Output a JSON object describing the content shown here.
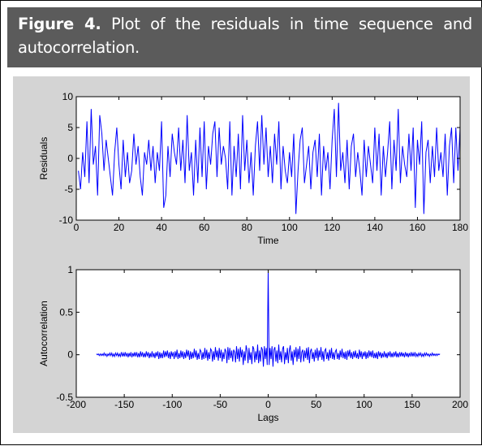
{
  "figure": {
    "label": "Figure 4.",
    "text": "Plot of the residuals in time sequence and autocorrelation."
  },
  "chart_data": [
    {
      "type": "line",
      "xlabel": "Time",
      "ylabel": "Residuals",
      "color": "#0000ff",
      "xlim": [
        0,
        180
      ],
      "xticks": [
        0,
        20,
        40,
        60,
        80,
        100,
        120,
        140,
        160,
        180
      ],
      "ylim": [
        -10,
        10
      ],
      "yticks": [
        -10,
        -5,
        0,
        5,
        10
      ],
      "x": [
        1,
        2,
        3,
        4,
        5,
        6,
        7,
        8,
        9,
        10,
        11,
        12,
        13,
        14,
        15,
        16,
        17,
        18,
        19,
        20,
        21,
        22,
        23,
        24,
        25,
        26,
        27,
        28,
        29,
        30,
        31,
        32,
        33,
        34,
        35,
        36,
        37,
        38,
        39,
        40,
        41,
        42,
        43,
        44,
        45,
        46,
        47,
        48,
        49,
        50,
        51,
        52,
        53,
        54,
        55,
        56,
        57,
        58,
        59,
        60,
        61,
        62,
        63,
        64,
        65,
        66,
        67,
        68,
        69,
        70,
        71,
        72,
        73,
        74,
        75,
        76,
        77,
        78,
        79,
        80,
        81,
        82,
        83,
        84,
        85,
        86,
        87,
        88,
        89,
        90,
        91,
        92,
        93,
        94,
        95,
        96,
        97,
        98,
        99,
        100,
        101,
        102,
        103,
        104,
        105,
        106,
        107,
        108,
        109,
        110,
        111,
        112,
        113,
        114,
        115,
        116,
        117,
        118,
        119,
        120,
        121,
        122,
        123,
        124,
        125,
        126,
        127,
        128,
        129,
        130,
        131,
        132,
        133,
        134,
        135,
        136,
        137,
        138,
        139,
        140,
        141,
        142,
        143,
        144,
        145,
        146,
        147,
        148,
        149,
        150,
        151,
        152,
        153,
        154,
        155,
        156,
        157,
        158,
        159,
        160,
        161,
        162,
        163,
        164,
        165,
        166,
        167,
        168,
        169,
        170,
        171,
        172,
        173,
        174,
        175,
        176,
        177,
        178,
        179,
        180
      ],
      "values": [
        -2,
        -5,
        1,
        -3,
        6,
        -4,
        8,
        -1,
        2,
        -6,
        7,
        4,
        -2,
        3,
        0,
        -3,
        -6,
        1,
        5,
        -1,
        -5,
        3,
        -3,
        1,
        -4,
        -2,
        4,
        -1,
        2,
        -3,
        -6,
        1,
        -1,
        3,
        -2,
        2,
        -4,
        1,
        -2,
        6,
        -8,
        -6,
        2,
        -3,
        4,
        1,
        -1,
        5,
        -2,
        3,
        -4,
        7,
        -2,
        1,
        -6,
        3,
        -4,
        5,
        -3,
        6,
        -5,
        2,
        -1,
        4,
        6,
        -3,
        5,
        -1,
        2,
        0,
        -5,
        6,
        -6,
        2,
        -3,
        4,
        -5,
        7,
        -2,
        3,
        -4,
        1,
        -6,
        2,
        6,
        -2,
        7,
        -1,
        5,
        -3,
        2,
        -4,
        4,
        -1,
        6,
        -5,
        2,
        -2,
        -4,
        1,
        -3,
        4,
        -9,
        -2,
        3,
        5,
        -4,
        -1,
        2,
        -5,
        1,
        3,
        -3,
        4,
        -6,
        2,
        -2,
        1,
        -5,
        3,
        8,
        -3,
        9,
        -2,
        1,
        -4,
        3,
        -5,
        2,
        4,
        -3,
        1,
        -2,
        -6,
        3,
        -3,
        2,
        -1,
        -4,
        5,
        -2,
        4,
        -6,
        2,
        -3,
        1,
        6,
        -5,
        3,
        -2,
        8,
        -4,
        2,
        -1,
        -3,
        4,
        -2,
        5,
        -8,
        3,
        -1,
        6,
        -9,
        1,
        3,
        -4,
        2,
        -3,
        5,
        -2,
        1,
        -3,
        4,
        -6,
        2,
        5,
        -4,
        5,
        -2,
        5
      ]
    },
    {
      "type": "line",
      "xlabel": "Lags",
      "ylabel": "Autocorrelation",
      "color": "#0000ff",
      "xlim": [
        -200,
        200
      ],
      "xticks": [
        -200,
        -150,
        -100,
        -50,
        0,
        50,
        100,
        150,
        200
      ],
      "ylim": [
        -0.5,
        1
      ],
      "yticks": [
        -0.5,
        0,
        0.5,
        1
      ],
      "x": [
        -179,
        -178,
        -177,
        -176,
        -175,
        -174,
        -173,
        -172,
        -171,
        -170,
        -169,
        -168,
        -167,
        -166,
        -165,
        -164,
        -163,
        -162,
        -161,
        -160,
        -159,
        -158,
        -157,
        -156,
        -155,
        -154,
        -153,
        -152,
        -151,
        -150,
        -149,
        -148,
        -147,
        -146,
        -145,
        -144,
        -143,
        -142,
        -141,
        -140,
        -139,
        -138,
        -137,
        -136,
        -135,
        -134,
        -133,
        -132,
        -131,
        -130,
        -129,
        -128,
        -127,
        -126,
        -125,
        -124,
        -123,
        -122,
        -121,
        -120,
        -119,
        -118,
        -117,
        -116,
        -115,
        -114,
        -113,
        -112,
        -111,
        -110,
        -109,
        -108,
        -107,
        -106,
        -105,
        -104,
        -103,
        -102,
        -101,
        -100,
        -99,
        -98,
        -97,
        -96,
        -95,
        -94,
        -93,
        -92,
        -91,
        -90,
        -89,
        -88,
        -87,
        -86,
        -85,
        -84,
        -83,
        -82,
        -81,
        -80,
        -79,
        -78,
        -77,
        -76,
        -75,
        -74,
        -73,
        -72,
        -71,
        -70,
        -69,
        -68,
        -67,
        -66,
        -65,
        -64,
        -63,
        -62,
        -61,
        -60,
        -59,
        -58,
        -57,
        -56,
        -55,
        -54,
        -53,
        -52,
        -51,
        -50,
        -49,
        -48,
        -47,
        -46,
        -45,
        -44,
        -43,
        -42,
        -41,
        -40,
        -39,
        -38,
        -37,
        -36,
        -35,
        -34,
        -33,
        -32,
        -31,
        -30,
        -29,
        -28,
        -27,
        -26,
        -25,
        -24,
        -23,
        -22,
        -21,
        -20,
        -19,
        -18,
        -17,
        -16,
        -15,
        -14,
        -13,
        -12,
        -11,
        -10,
        -9,
        -8,
        -7,
        -6,
        -5,
        -4,
        -3,
        -2,
        -1,
        0,
        1,
        2,
        3,
        4,
        5,
        6,
        7,
        8,
        9,
        10,
        11,
        12,
        13,
        14,
        15,
        16,
        17,
        18,
        19,
        20,
        21,
        22,
        23,
        24,
        25,
        26,
        27,
        28,
        29,
        30,
        31,
        32,
        33,
        34,
        35,
        36,
        37,
        38,
        39,
        40,
        41,
        42,
        43,
        44,
        45,
        46,
        47,
        48,
        49,
        50,
        51,
        52,
        53,
        54,
        55,
        56,
        57,
        58,
        59,
        60,
        61,
        62,
        63,
        64,
        65,
        66,
        67,
        68,
        69,
        70,
        71,
        72,
        73,
        74,
        75,
        76,
        77,
        78,
        79,
        80,
        81,
        82,
        83,
        84,
        85,
        86,
        87,
        88,
        89,
        90,
        91,
        92,
        93,
        94,
        95,
        96,
        97,
        98,
        99,
        100,
        101,
        102,
        103,
        104,
        105,
        106,
        107,
        108,
        109,
        110,
        111,
        112,
        113,
        114,
        115,
        116,
        117,
        118,
        119,
        120,
        121,
        122,
        123,
        124,
        125,
        126,
        127,
        128,
        129,
        130,
        131,
        132,
        133,
        134,
        135,
        136,
        137,
        138,
        139,
        140,
        141,
        142,
        143,
        144,
        145,
        146,
        147,
        148,
        149,
        150,
        151,
        152,
        153,
        154,
        155,
        156,
        157,
        158,
        159,
        160,
        161,
        162,
        163,
        164,
        165,
        166,
        167,
        168,
        169,
        170,
        171,
        172,
        173,
        174,
        175,
        176,
        177,
        178,
        179
      ],
      "values": [
        0.01,
        0,
        0.01,
        -0.01,
        0.01,
        -0.01,
        0.01,
        -0.01,
        0.02,
        -0.01,
        0.01,
        -0.02,
        0.01,
        -0.01,
        0.02,
        -0.01,
        0.02,
        -0.02,
        0.01,
        -0.02,
        0.02,
        -0.01,
        0.02,
        -0.02,
        0.01,
        -0.02,
        0.03,
        -0.02,
        0.02,
        -0.02,
        0.03,
        -0.02,
        0.02,
        -0.03,
        0.02,
        -0.02,
        0.03,
        -0.03,
        0.02,
        -0.02,
        0.03,
        -0.02,
        0.03,
        -0.03,
        0.02,
        -0.03,
        0.04,
        -0.02,
        0.03,
        -0.03,
        0.02,
        -0.03,
        0.04,
        -0.02,
        0.03,
        -0.04,
        0.02,
        -0.03,
        0.04,
        -0.03,
        0.02,
        -0.04,
        0.03,
        -0.02,
        0.04,
        -0.05,
        0.03,
        -0.04,
        0.02,
        -0.04,
        0.05,
        -0.03,
        0.04,
        -0.02,
        0.05,
        -0.04,
        0.03,
        -0.05,
        0.04,
        -0.02,
        0.03,
        -0.05,
        0.04,
        -0.03,
        0.06,
        -0.05,
        0.02,
        -0.04,
        0.05,
        -0.03,
        0.04,
        -0.05,
        0.03,
        -0.04,
        0.06,
        -0.02,
        0.05,
        -0.06,
        0.04,
        -0.05,
        0.03,
        -0.04,
        0.07,
        -0.03,
        0.05,
        -0.06,
        0.02,
        -0.05,
        0.06,
        0.04,
        -0.06,
        0.03,
        -0.05,
        0.08,
        -0.04,
        0.06,
        -0.07,
        0.03,
        -0.05,
        0.07,
        0.05,
        -0.08,
        0.04,
        -0.06,
        0.09,
        -0.03,
        0.05,
        -0.07,
        0.08,
        -0.04,
        0.06,
        -0.08,
        0.03,
        -0.05,
        0.07,
        0.04,
        -0.1,
        0.09,
        -0.06,
        0.08,
        -0.04,
        0.05,
        -0.08,
        0.06,
        0.03,
        -0.09,
        0.1,
        -0.05,
        0.07,
        -0.08,
        0.09,
        -0.03,
        0.06,
        -0.12,
        0.04,
        -0.07,
        0.11,
        0.05,
        -0.1,
        0.08,
        -0.06,
        0.03,
        -0.11,
        0.1,
        0.07,
        -0.09,
        0.04,
        -0.06,
        0.12,
        -0.1,
        0.05,
        -0.08,
        0.09,
        0.06,
        -0.14,
        0.1,
        -0.05,
        0.08,
        -0.12,
        1,
        -0.12,
        0.08,
        -0.05,
        0.1,
        -0.14,
        0.06,
        0.09,
        -0.08,
        0.05,
        -0.1,
        0.12,
        -0.06,
        0.04,
        -0.09,
        0.07,
        0.1,
        -0.11,
        0.03,
        -0.06,
        0.08,
        -0.1,
        0.05,
        0.11,
        -0.07,
        0.04,
        -0.12,
        0.06,
        -0.03,
        0.09,
        -0.08,
        0.07,
        -0.05,
        0.1,
        -0.09,
        0.03,
        0.06,
        -0.08,
        0.05,
        -0.04,
        0.08,
        -0.06,
        0.09,
        -0.1,
        0.04,
        0.07,
        -0.05,
        0.03,
        -0.08,
        0.06,
        -0.04,
        0.08,
        -0.07,
        0.05,
        -0.03,
        0.09,
        -0.06,
        0.04,
        -0.08,
        0.05,
        0.07,
        -0.05,
        0.03,
        -0.07,
        0.06,
        -0.04,
        0.08,
        -0.05,
        0.03,
        -0.06,
        0.04,
        0.06,
        -0.05,
        0.02,
        -0.06,
        0.05,
        -0.03,
        0.07,
        -0.04,
        0.03,
        -0.05,
        0.04,
        -0.06,
        0.05,
        -0.02,
        0.06,
        -0.04,
        0.03,
        -0.05,
        0.04,
        -0.03,
        0.05,
        -0.04,
        0.02,
        -0.05,
        0.06,
        -0.03,
        0.04,
        -0.05,
        0.03,
        -0.02,
        0.04,
        -0.05,
        0.03,
        -0.04,
        0.05,
        -0.02,
        0.04,
        -0.03,
        0.05,
        -0.04,
        0.02,
        -0.04,
        0.03,
        -0.05,
        0.04,
        -0.02,
        0.03,
        -0.04,
        0.02,
        -0.03,
        0.04,
        -0.03,
        0.02,
        -0.04,
        0.03,
        -0.02,
        0.04,
        -0.03,
        0.02,
        -0.03,
        0.03,
        -0.02,
        0.04,
        -0.03,
        0.02,
        -0.03,
        0.03,
        -0.02,
        0.03,
        -0.02,
        0.02,
        -0.03,
        0.03,
        -0.02,
        0.02,
        -0.03,
        0.02,
        -0.02,
        0.03,
        -0.02,
        0.02,
        -0.02,
        0.03,
        -0.02,
        0.01,
        -0.02,
        0.02,
        -0.01,
        0.02,
        -0.02,
        0.01,
        -0.02,
        0.02,
        -0.01,
        0.02,
        -0.01,
        0.01,
        -0.02,
        0.01,
        -0.01,
        0.02,
        -0.01,
        0.01,
        -0.01,
        0.01,
        -0.01,
        0.01,
        0,
        0.01
      ]
    }
  ]
}
